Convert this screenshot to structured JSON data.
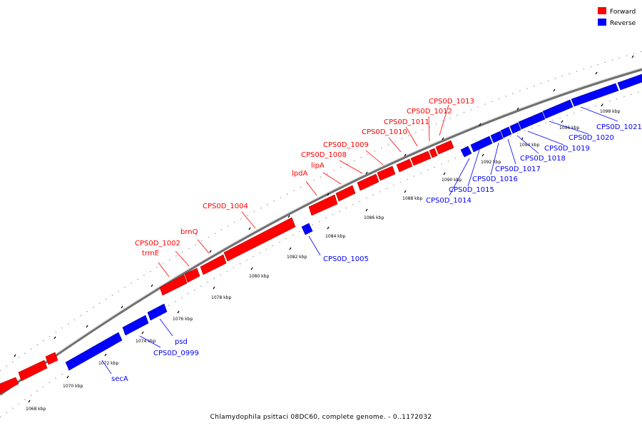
{
  "caption": "Chlamydophila psittaci 08DC60, complete genome. - 0..1172032",
  "legend": {
    "forward": {
      "label": "Forward",
      "color": "#ff0000"
    },
    "reverse": {
      "label": "Reverse",
      "color": "#0000ff"
    }
  },
  "ticks": [
    "1068 kbp",
    "1070 kbp",
    "1072 kbp",
    "1074 kbp",
    "1076 kbp",
    "1078 kbp",
    "1080 kbp",
    "1082 kbp",
    "1084 kbp",
    "1086 kbp",
    "1088 kbp",
    "1090 kbp",
    "1092 kbp",
    "1094 kbp",
    "1096 kbp",
    "1098 kbp"
  ],
  "forward_genes": [
    {
      "name": "trmE"
    },
    {
      "name": "CPS0D_1002"
    },
    {
      "name": "brnQ"
    },
    {
      "name": "CPS0D_1004"
    },
    {
      "name": "lpdA"
    },
    {
      "name": "lipA"
    },
    {
      "name": "CPS0D_1008"
    },
    {
      "name": "CPS0D_1009"
    },
    {
      "name": "CPS0D_1010"
    },
    {
      "name": "CPS0D_1011"
    },
    {
      "name": "CPS0D_1012"
    },
    {
      "name": "CPS0D_1013"
    }
  ],
  "reverse_genes": [
    {
      "name": "secA"
    },
    {
      "name": "CPS0D_0999"
    },
    {
      "name": "psd"
    },
    {
      "name": "CPS0D_1005"
    },
    {
      "name": "CPS0D_1014"
    },
    {
      "name": "CPS0D_1015"
    },
    {
      "name": "CPS0D_1016"
    },
    {
      "name": "CPS0D_1017"
    },
    {
      "name": "CPS0D_1018"
    },
    {
      "name": "CPS0D_1019"
    },
    {
      "name": "CPS0D_1020"
    },
    {
      "name": "CPS0D_1021"
    }
  ]
}
